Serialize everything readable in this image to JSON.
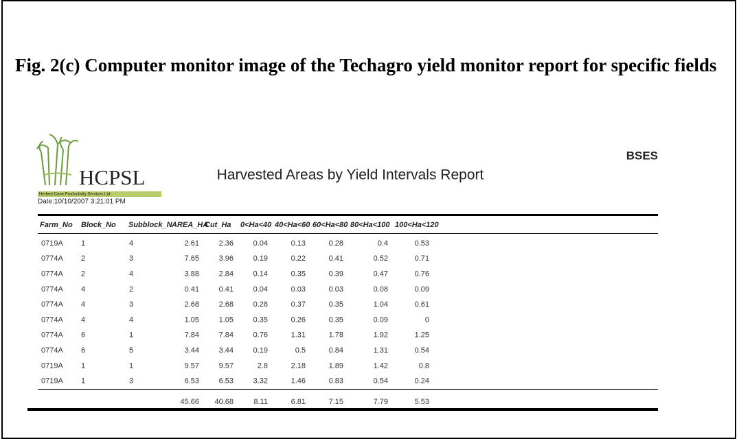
{
  "figure_title": "Fig. 2(c) Computer monitor image of the Techagro yield monitor report for specific fields",
  "report": {
    "logo": {
      "text": "HCPSL",
      "subtitle": "Herbert Cane Productivity Services Ltd."
    },
    "date": "Date:10/10/2007 3:21:01 PM",
    "title": "Harvested Areas by Yield Intervals Report",
    "organization": "BSES",
    "table": {
      "headers": [
        "Farm_No",
        "Block_No",
        "Subblock_N",
        "AREA_HA",
        "Cut_Ha",
        "0<Ha<40",
        "40<Ha<60",
        "60<Ha<80",
        "80<Ha<100",
        "100<Ha<120"
      ],
      "rows": [
        [
          "0719A",
          "1",
          "4",
          "2.61",
          "2.36",
          "0.04",
          "0.13",
          "0.28",
          "0.4",
          "0.53"
        ],
        [
          "0774A",
          "2",
          "3",
          "7.65",
          "3.96",
          "0.19",
          "0.22",
          "0.41",
          "0.52",
          "0.71"
        ],
        [
          "0774A",
          "2",
          "4",
          "3.88",
          "2.84",
          "0.14",
          "0.35",
          "0.39",
          "0.47",
          "0.76"
        ],
        [
          "0774A",
          "4",
          "2",
          "0.41",
          "0.41",
          "0.04",
          "0.03",
          "0.03",
          "0.08",
          "0.09"
        ],
        [
          "0774A",
          "4",
          "3",
          "2.68",
          "2.68",
          "0.28",
          "0.37",
          "0.35",
          "1.04",
          "0.61"
        ],
        [
          "0774A",
          "4",
          "4",
          "1.05",
          "1.05",
          "0.35",
          "0.26",
          "0.35",
          "0.09",
          "0"
        ],
        [
          "0774A",
          "6",
          "1",
          "7.84",
          "7.84",
          "0.76",
          "1.31",
          "1.78",
          "1.92",
          "1.25"
        ],
        [
          "0774A",
          "6",
          "5",
          "3.44",
          "3.44",
          "0.19",
          "0.5",
          "0.84",
          "1.31",
          "0.54"
        ],
        [
          "0719A",
          "1",
          "1",
          "9.57",
          "9.57",
          "2.8",
          "2.18",
          "1.89",
          "1.42",
          "0.8"
        ],
        [
          "0719A",
          "1",
          "3",
          "6.53",
          "6.53",
          "3.32",
          "1.46",
          "0.83",
          "0.54",
          "0.24"
        ]
      ],
      "totals": [
        "45.66",
        "40.68",
        "8.11",
        "6.81",
        "7.15",
        "7.79",
        "5.53"
      ]
    }
  }
}
